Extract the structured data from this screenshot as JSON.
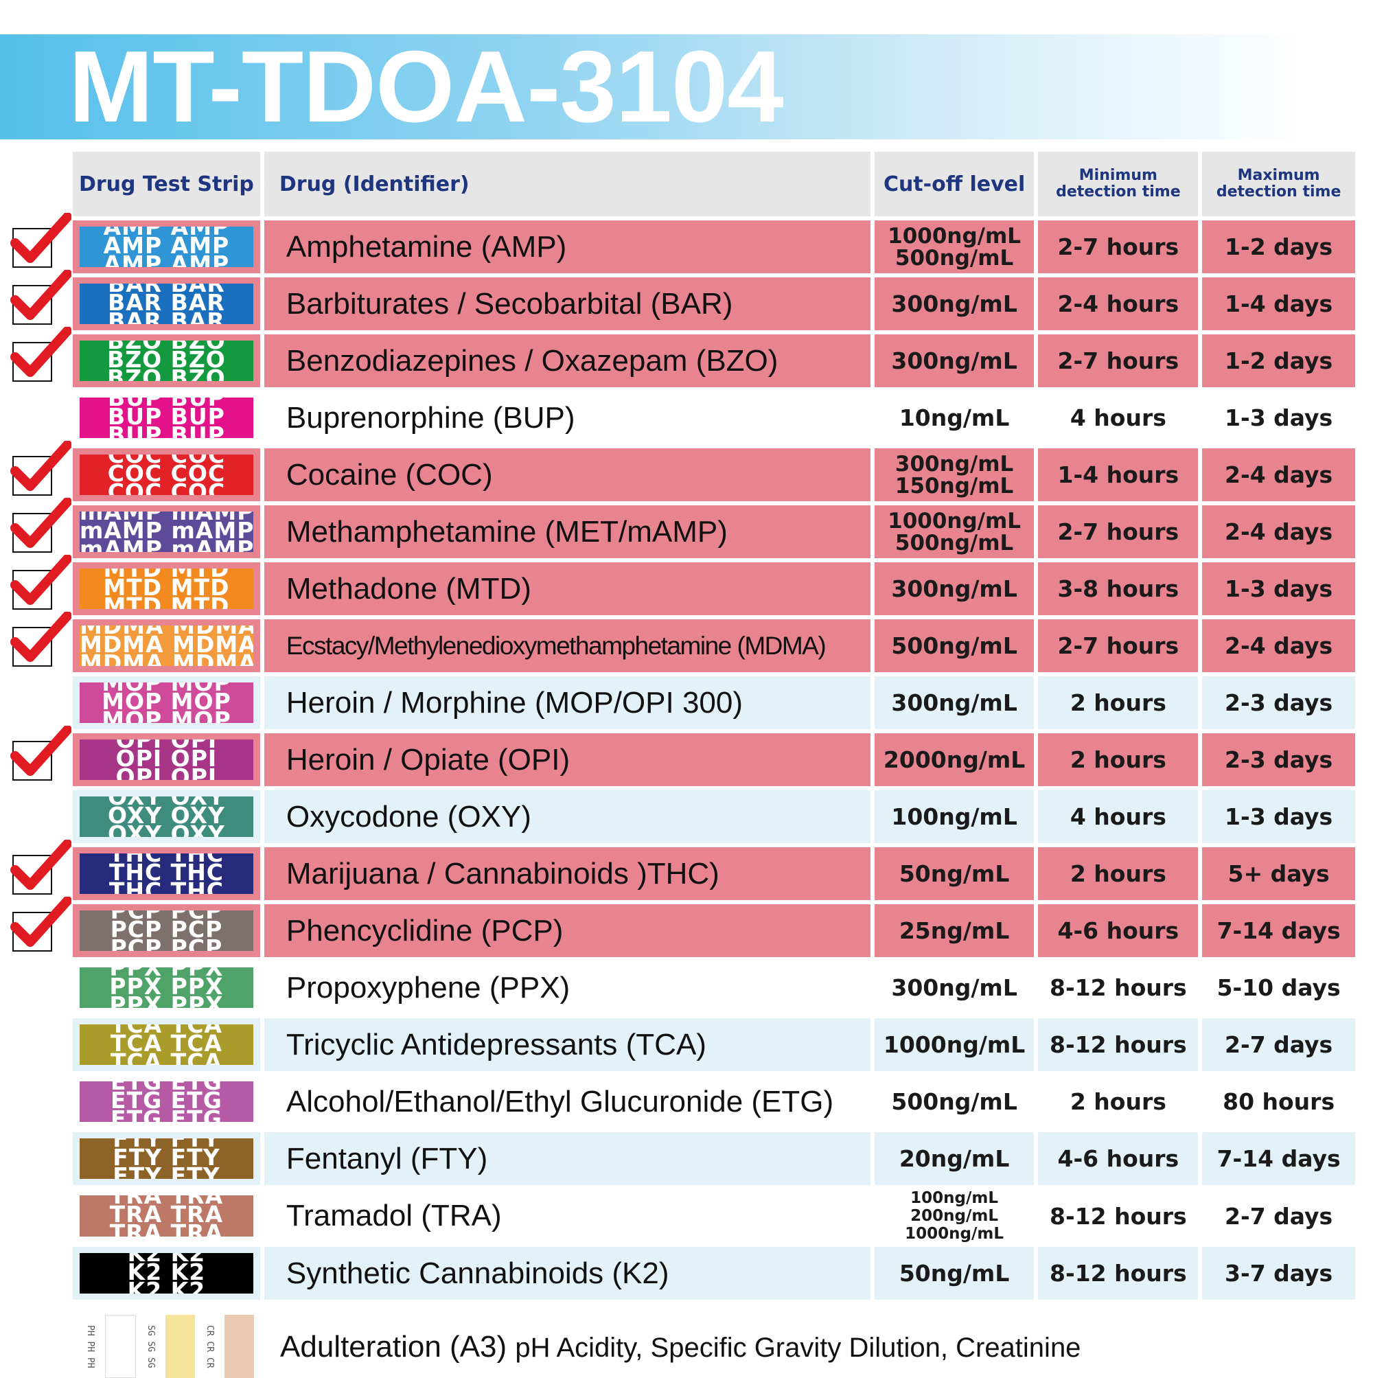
{
  "title": "MT-TDOA-3104",
  "headers": {
    "strip": "Drug Test Strip",
    "drug": "Drug (Identifier)",
    "cutoff": "Cut-off level",
    "min": [
      "Minimum",
      "detection time"
    ],
    "max": [
      "Maximum",
      "detection time"
    ]
  },
  "rows": [
    {
      "code": "AMP",
      "color": "#2f95d5",
      "drug": "Amphetamine (AMP)",
      "cutoff": [
        "1000ng/mL",
        "500ng/mL"
      ],
      "min": "2-7 hours",
      "max": "1-2 days",
      "checked": true,
      "bg": "pink"
    },
    {
      "code": "BAR",
      "color": "#1a6fbf",
      "drug": "Barbiturates / Secobarbital (BAR)",
      "cutoff": [
        "300ng/mL"
      ],
      "min": "2-4 hours",
      "max": "1-4 days",
      "checked": true,
      "bg": "pink"
    },
    {
      "code": "BZO",
      "color": "#139a3e",
      "drug": "Benzodiazepines / Oxazepam (BZO)",
      "cutoff": [
        "300ng/mL"
      ],
      "min": "2-7 hours",
      "max": "1-2 days",
      "checked": true,
      "bg": "pink"
    },
    {
      "code": "BUP",
      "color": "#e3128a",
      "drug": "Buprenorphine (BUP)",
      "cutoff": [
        "10ng/mL"
      ],
      "min": "4 hours",
      "max": "1-3 days",
      "checked": false,
      "bg": "white"
    },
    {
      "code": "COC",
      "color": "#e32228",
      "drug": "Cocaine (COC)",
      "cutoff": [
        "300ng/mL",
        "150ng/mL"
      ],
      "min": "1-4 hours",
      "max": "2-4 days",
      "checked": true,
      "bg": "pink"
    },
    {
      "code": "mAMP",
      "color": "#5d4b9a",
      "drug": "Methamphetamine (MET/mAMP)",
      "cutoff": [
        "1000ng/mL",
        "500ng/mL"
      ],
      "min": "2-7 hours",
      "max": "2-4 days",
      "checked": true,
      "bg": "pink"
    },
    {
      "code": "MTD",
      "color": "#f28a1f",
      "drug": "Methadone (MTD)",
      "cutoff": [
        "300ng/mL"
      ],
      "min": "3-8 hours",
      "max": "1-3 days",
      "checked": true,
      "bg": "pink"
    },
    {
      "code": "MDMA",
      "color": "#f39a3c",
      "drug": "Ecstacy/Methylenedioxymethamphetamine (MDMA)",
      "cutoff": [
        "500ng/mL"
      ],
      "min": "2-7 hours",
      "max": "2-4 days",
      "checked": true,
      "bg": "pink",
      "narrow": true
    },
    {
      "code": "MOP",
      "color": "#cf4b9a",
      "drug": "Heroin / Morphine (MOP/OPI 300)",
      "cutoff": [
        "300ng/mL"
      ],
      "min": "2 hours",
      "max": "2-3 days",
      "checked": false,
      "bg": "blue"
    },
    {
      "code": "OPI",
      "color": "#a83488",
      "drug": "Heroin / Opiate (OPI)",
      "cutoff": [
        "2000ng/mL"
      ],
      "min": "2 hours",
      "max": "2-3 days",
      "checked": true,
      "bg": "pink"
    },
    {
      "code": "OXY",
      "color": "#3e8c7e",
      "drug": "Oxycodone (OXY)",
      "cutoff": [
        "100ng/mL"
      ],
      "min": "4 hours",
      "max": "1-3 days",
      "checked": false,
      "bg": "blue"
    },
    {
      "code": "THC",
      "color": "#262b7d",
      "drug": "Marijuana / Cannabinoids )THC)",
      "cutoff": [
        "50ng/mL"
      ],
      "min": "2 hours",
      "max": "5+ days",
      "checked": true,
      "bg": "pink"
    },
    {
      "code": "PCP",
      "color": "#7d706d",
      "drug": "Phencyclidine (PCP)",
      "cutoff": [
        "25ng/mL"
      ],
      "min": "4-6 hours",
      "max": "7-14 days",
      "checked": true,
      "bg": "pink"
    },
    {
      "code": "PPX",
      "color": "#4fa368",
      "drug": "Propoxyphene (PPX)",
      "cutoff": [
        "300ng/mL"
      ],
      "min": "8-12 hours",
      "max": "5-10 days",
      "checked": false,
      "bg": "white"
    },
    {
      "code": "TCA",
      "color": "#a99c2b",
      "drug": "Tricyclic Antidepressants (TCA)",
      "cutoff": [
        "1000ng/mL"
      ],
      "min": "8-12 hours",
      "max": "2-7 days",
      "checked": false,
      "bg": "blue"
    },
    {
      "code": "ETG",
      "color": "#b75aa6",
      "drug": "Alcohol/Ethanol/Ethyl Glucuronide (ETG)",
      "cutoff": [
        "500ng/mL"
      ],
      "min": "2 hours",
      "max": "80 hours",
      "checked": false,
      "bg": "white"
    },
    {
      "code": "FTY",
      "color": "#8e6328",
      "drug": "Fentanyl (FTY)",
      "cutoff": [
        "20ng/mL"
      ],
      "min": "4-6 hours",
      "max": "7-14 days",
      "checked": false,
      "bg": "blue"
    },
    {
      "code": "TRA",
      "color": "#bd7867",
      "drug": "Tramadol (TRA)",
      "cutoff": [
        "100ng/mL",
        "200ng/mL",
        "1000ng/mL"
      ],
      "min": "8-12 hours",
      "max": "2-7 days",
      "checked": false,
      "bg": "white"
    },
    {
      "code": "K2",
      "color": "#000000",
      "drug": "Synthetic Cannabinoids (K2)",
      "cutoff": [
        "50ng/mL"
      ],
      "min": "8-12 hours",
      "max": "3-7 days",
      "checked": false,
      "bg": "blue"
    }
  ],
  "adulteration": {
    "label": "Adulteration (A3)",
    "detail": "pH Acidity, Specific Gravity Dilution, Creatinine",
    "pads": [
      {
        "code": "PH",
        "color": "#ffffff"
      },
      {
        "code": "SG",
        "color": "#f5e39a"
      },
      {
        "code": "CR",
        "color": "#ebcab3"
      }
    ]
  }
}
